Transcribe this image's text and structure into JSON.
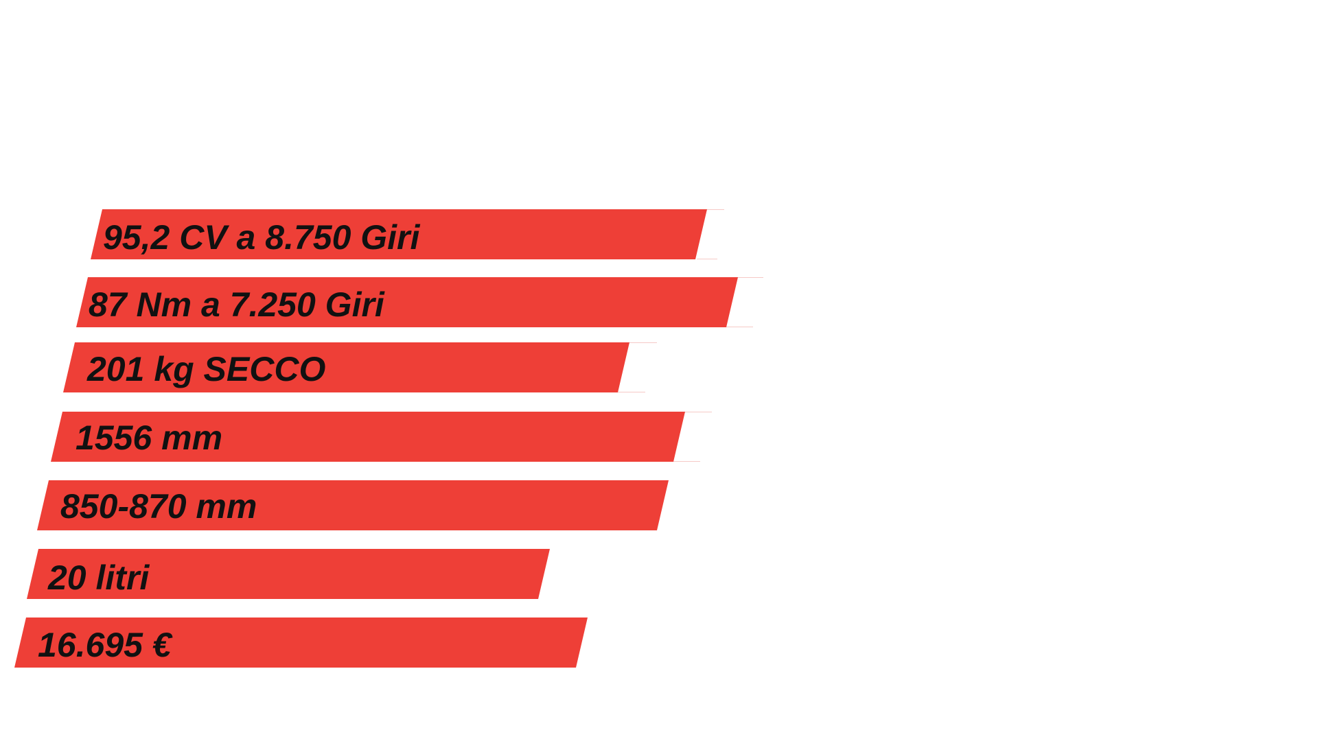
{
  "accent_color": "#ee3f37",
  "text_color": "#111111",
  "specs": [
    {
      "label": "95,2 CV a 8.750 Giri"
    },
    {
      "label": "87 Nm a 7.250 Giri"
    },
    {
      "label": "201 kg SECCO"
    },
    {
      "label": "1556 mm"
    },
    {
      "label": "850-870 mm"
    },
    {
      "label": "20 litri"
    },
    {
      "label": "16.695 €"
    }
  ]
}
